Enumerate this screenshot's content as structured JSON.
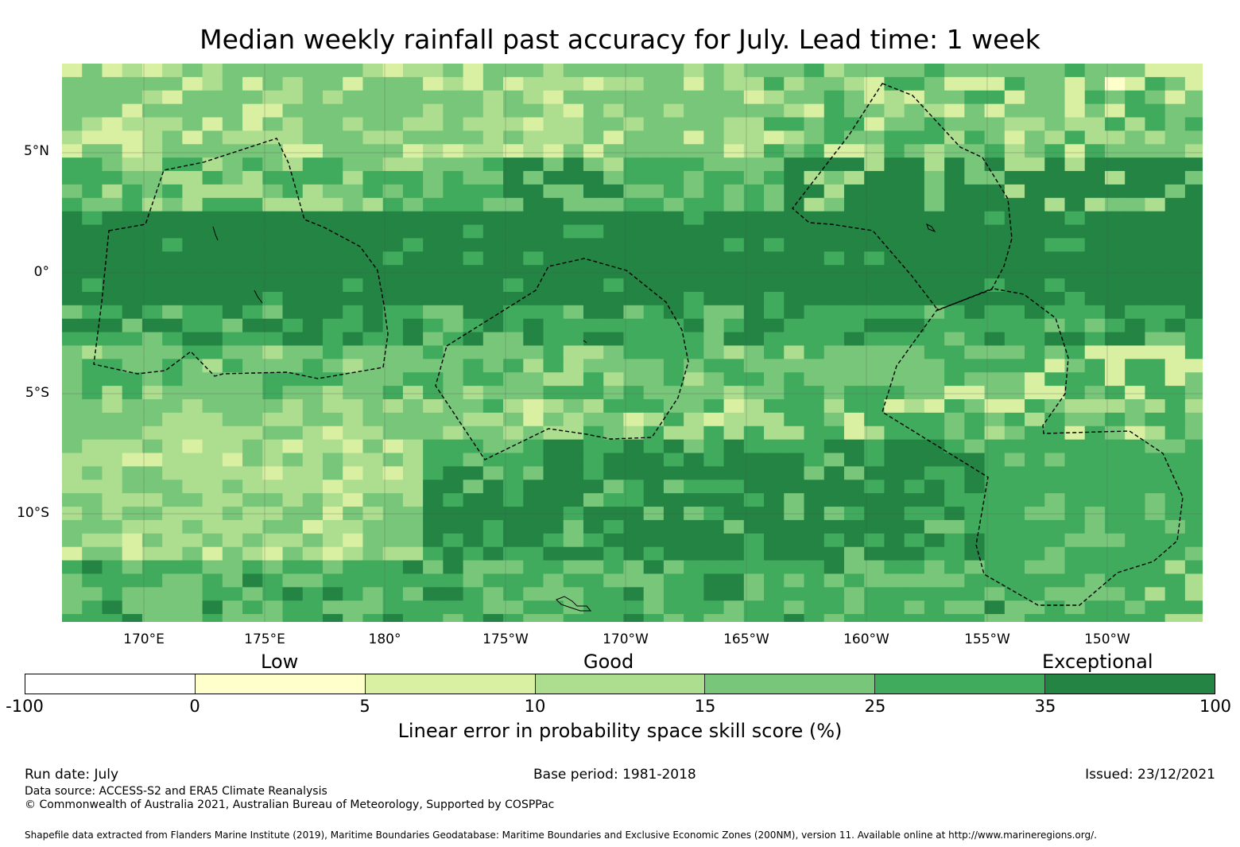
{
  "title": "Median weekly rainfall past accuracy for July. Lead time: 1 week",
  "map": {
    "lat_labels": [
      "5°N",
      "0°",
      "5°S",
      "10°S"
    ],
    "lon_labels": [
      "170°E",
      "175°E",
      "180°",
      "175°W",
      "170°W",
      "165°W",
      "160°W",
      "155°W",
      "150°W"
    ],
    "cell_colors": [
      "#ffffcc",
      "#d9f0a3",
      "#addd8e",
      "#78c679",
      "#41ab5d",
      "#238443"
    ],
    "grid_line_color": "#555555",
    "boundary_style": "dashed black",
    "bands": [
      {
        "lat_range": "north of 3°N",
        "dominant_class": "15-25 with 5-15 patches"
      },
      {
        "lat_range": "3°N to 2°S",
        "dominant_class": "35-100"
      },
      {
        "lat_range": "2°S to 7°S",
        "dominant_class": "15-35"
      },
      {
        "lat_range": "8°S to 12°S east of 175°W",
        "dominant_class": "35-100"
      },
      {
        "lat_range": "south-west corner",
        "dominant_class": "10-25"
      }
    ]
  },
  "colorbar": {
    "categories": [
      "Low",
      "Good",
      "Exceptional"
    ],
    "ticks": [
      "-100",
      "0",
      "5",
      "10",
      "15",
      "25",
      "35",
      "100"
    ],
    "colors": [
      "#ffffff",
      "#ffffcc",
      "#d9f0a3",
      "#addd8e",
      "#78c679",
      "#41ab5d",
      "#238443"
    ],
    "label": "Linear error in probability space skill score (%)"
  },
  "footer": {
    "run_date": "Run date: July",
    "base_period": "Base period: 1981-2018",
    "issued": "Issued: 23/12/2021",
    "data_source": "Data source: ACCESS-S2 and ERA5 Climate Reanalysis",
    "copyright": "© Commonwealth of Australia 2021, Australian Bureau of Meteorology, Supported by COSPPac",
    "shapefile": "Shapefile data extracted from Flanders Marine Institute (2019), Maritime Boundaries Geodatabase: Maritime Boundaries and Exclusive Economic Zones (200NM), version 11. Available online at http://www.marineregions.org/."
  }
}
